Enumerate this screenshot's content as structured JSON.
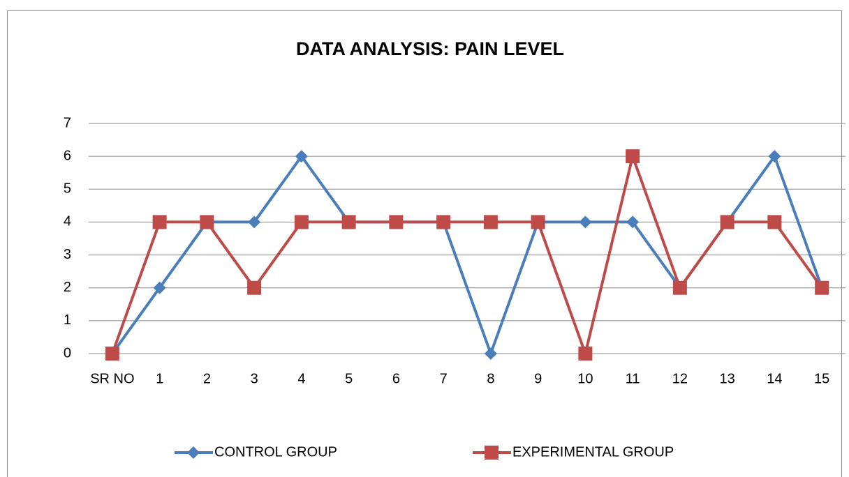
{
  "chart_data": {
    "type": "line",
    "title": "DATA ANALYSIS:  PAIN LEVEL",
    "categories": [
      "SR NO",
      "1",
      "2",
      "3",
      "4",
      "5",
      "6",
      "7",
      "8",
      "9",
      "10",
      "11",
      "12",
      "13",
      "14",
      "15"
    ],
    "series": [
      {
        "name": "CONTROL GROUP",
        "color": "#4a7ebb",
        "marker": "diamond",
        "values": [
          0,
          2,
          4,
          4,
          6,
          4,
          4,
          4,
          0,
          4,
          4,
          4,
          2,
          4,
          6,
          2
        ]
      },
      {
        "name": "EXPERIMENTAL GROUP",
        "color": "#be4b48",
        "marker": "square",
        "values": [
          0,
          4,
          4,
          2,
          4,
          4,
          4,
          4,
          4,
          4,
          0,
          6,
          2,
          4,
          4,
          2
        ]
      }
    ],
    "ylim": [
      0,
      7
    ],
    "yticks": [
      0,
      1,
      2,
      3,
      4,
      5,
      6,
      7
    ],
    "grid": true,
    "legend": "bottom"
  }
}
